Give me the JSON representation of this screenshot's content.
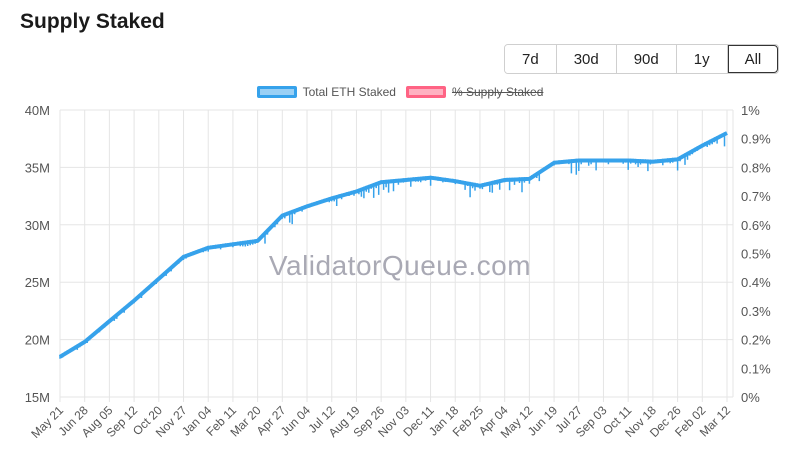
{
  "header": {
    "title": "Supply Staked"
  },
  "range_buttons": [
    {
      "label": "7d",
      "active": false
    },
    {
      "label": "30d",
      "active": false
    },
    {
      "label": "90d",
      "active": false
    },
    {
      "label": "1y",
      "active": false
    },
    {
      "label": "All",
      "active": true
    }
  ],
  "legend": [
    {
      "label": "Total ETH Staked",
      "fill": "#9ad0f5",
      "border": "#36a2eb",
      "hidden": false
    },
    {
      "label": "% Supply Staked",
      "fill": "#ffb1c1",
      "border": "#ff6384",
      "hidden": true
    }
  ],
  "watermark": "ValidatorQueue.com",
  "chart_data": {
    "type": "line",
    "title": "Supply Staked",
    "xlabel": "",
    "ylabel": "",
    "y_left": {
      "ticks": [
        "15M",
        "20M",
        "25M",
        "30M",
        "35M",
        "40M"
      ],
      "range": [
        15000000,
        40000000
      ]
    },
    "y_right": {
      "ticks": [
        "0%",
        "0.1%",
        "0.2%",
        "0.3%",
        "0.4%",
        "0.5%",
        "0.6%",
        "0.7%",
        "0.8%",
        "0.9%",
        "1%"
      ],
      "range": [
        0,
        1
      ]
    },
    "x_ticks": [
      "May 21",
      "Jun 28",
      "Aug 05",
      "Sep 12",
      "Oct 20",
      "Nov 27",
      "Jan 04",
      "Feb 11",
      "Mar 20",
      "Apr 27",
      "Jun 04",
      "Jul 12",
      "Aug 19",
      "Sep 26",
      "Nov 03",
      "Dec 11",
      "Jan 18",
      "Feb 25",
      "Apr 04",
      "May 12",
      "Jun 19",
      "Jul 27",
      "Sep 03",
      "Oct 11",
      "Nov 18",
      "Dec 26",
      "Feb 02",
      "Mar 12"
    ],
    "grid": true,
    "legend_position": "top",
    "series": [
      {
        "name": "Total ETH Staked",
        "color": "#36a2eb",
        "values": [
          18.5,
          19.8,
          21.6,
          23.4,
          25.3,
          27.2,
          28.0,
          28.3,
          28.6,
          30.8,
          31.6,
          32.3,
          32.9,
          33.7,
          33.9,
          34.1,
          33.8,
          33.4,
          33.9,
          34.0,
          35.4,
          35.6,
          35.6,
          35.6,
          35.5,
          35.7,
          36.9,
          38.0
        ]
      },
      {
        "name": "% Supply Staked",
        "color": "#ff6384",
        "hidden": true,
        "values": []
      }
    ]
  }
}
